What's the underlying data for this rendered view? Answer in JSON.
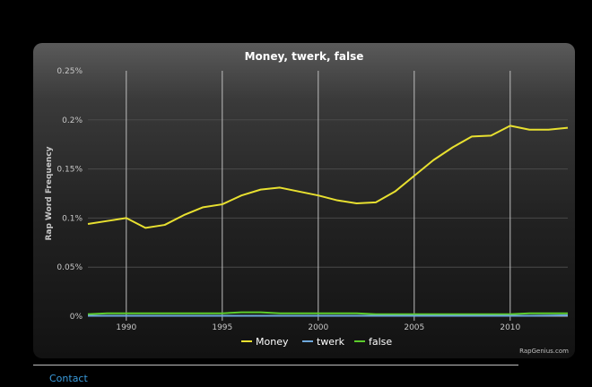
{
  "credit": "RapGenius.com",
  "footer": {
    "contact_label": "Contact"
  },
  "chart_data": {
    "type": "line",
    "title": "Money, twerk, false",
    "xlabel": "",
    "ylabel": "Rap Word Frequency",
    "xlim": [
      1988,
      2013
    ],
    "ylim": [
      0,
      0.25
    ],
    "x_ticks": [
      1990,
      1995,
      2000,
      2005,
      2010
    ],
    "y_ticks": [
      {
        "value": 0,
        "label": "0%"
      },
      {
        "value": 0.05,
        "label": "0.05%"
      },
      {
        "value": 0.1,
        "label": "0.1%"
      },
      {
        "value": 0.15,
        "label": "0.15%"
      },
      {
        "value": 0.2,
        "label": "0.2%"
      },
      {
        "value": 0.25,
        "label": "0.25%"
      }
    ],
    "x": [
      1988,
      1989,
      1990,
      1991,
      1992,
      1993,
      1994,
      1995,
      1996,
      1997,
      1998,
      1999,
      2000,
      2001,
      2002,
      2003,
      2004,
      2005,
      2006,
      2007,
      2008,
      2009,
      2010,
      2011,
      2012,
      2013
    ],
    "series": [
      {
        "name": "Money",
        "color": "#e8e030",
        "values": [
          0.094,
          0.097,
          0.1,
          0.09,
          0.093,
          0.103,
          0.111,
          0.114,
          0.123,
          0.129,
          0.131,
          0.127,
          0.123,
          0.118,
          0.115,
          0.116,
          0.127,
          0.143,
          0.159,
          0.172,
          0.183,
          0.184,
          0.194,
          0.19,
          0.19,
          0.192
        ]
      },
      {
        "name": "twerk",
        "color": "#6fa8dc",
        "values": [
          0.0005,
          0.0005,
          0.0005,
          0.0005,
          0.0005,
          0.0005,
          0.0005,
          0.0005,
          0.0005,
          0.0005,
          0.0005,
          0.0005,
          0.0005,
          0.0005,
          0.0005,
          0.0005,
          0.0005,
          0.0005,
          0.0005,
          0.0005,
          0.0005,
          0.0005,
          0.0005,
          0.0005,
          0.0007,
          0.001
        ]
      },
      {
        "name": "false",
        "color": "#5ccc2c",
        "values": [
          0.002,
          0.003,
          0.003,
          0.003,
          0.003,
          0.003,
          0.003,
          0.003,
          0.004,
          0.004,
          0.003,
          0.003,
          0.003,
          0.003,
          0.003,
          0.002,
          0.002,
          0.002,
          0.002,
          0.002,
          0.002,
          0.002,
          0.002,
          0.003,
          0.003,
          0.003
        ]
      }
    ],
    "grid": true,
    "legend": "bottom-center"
  }
}
